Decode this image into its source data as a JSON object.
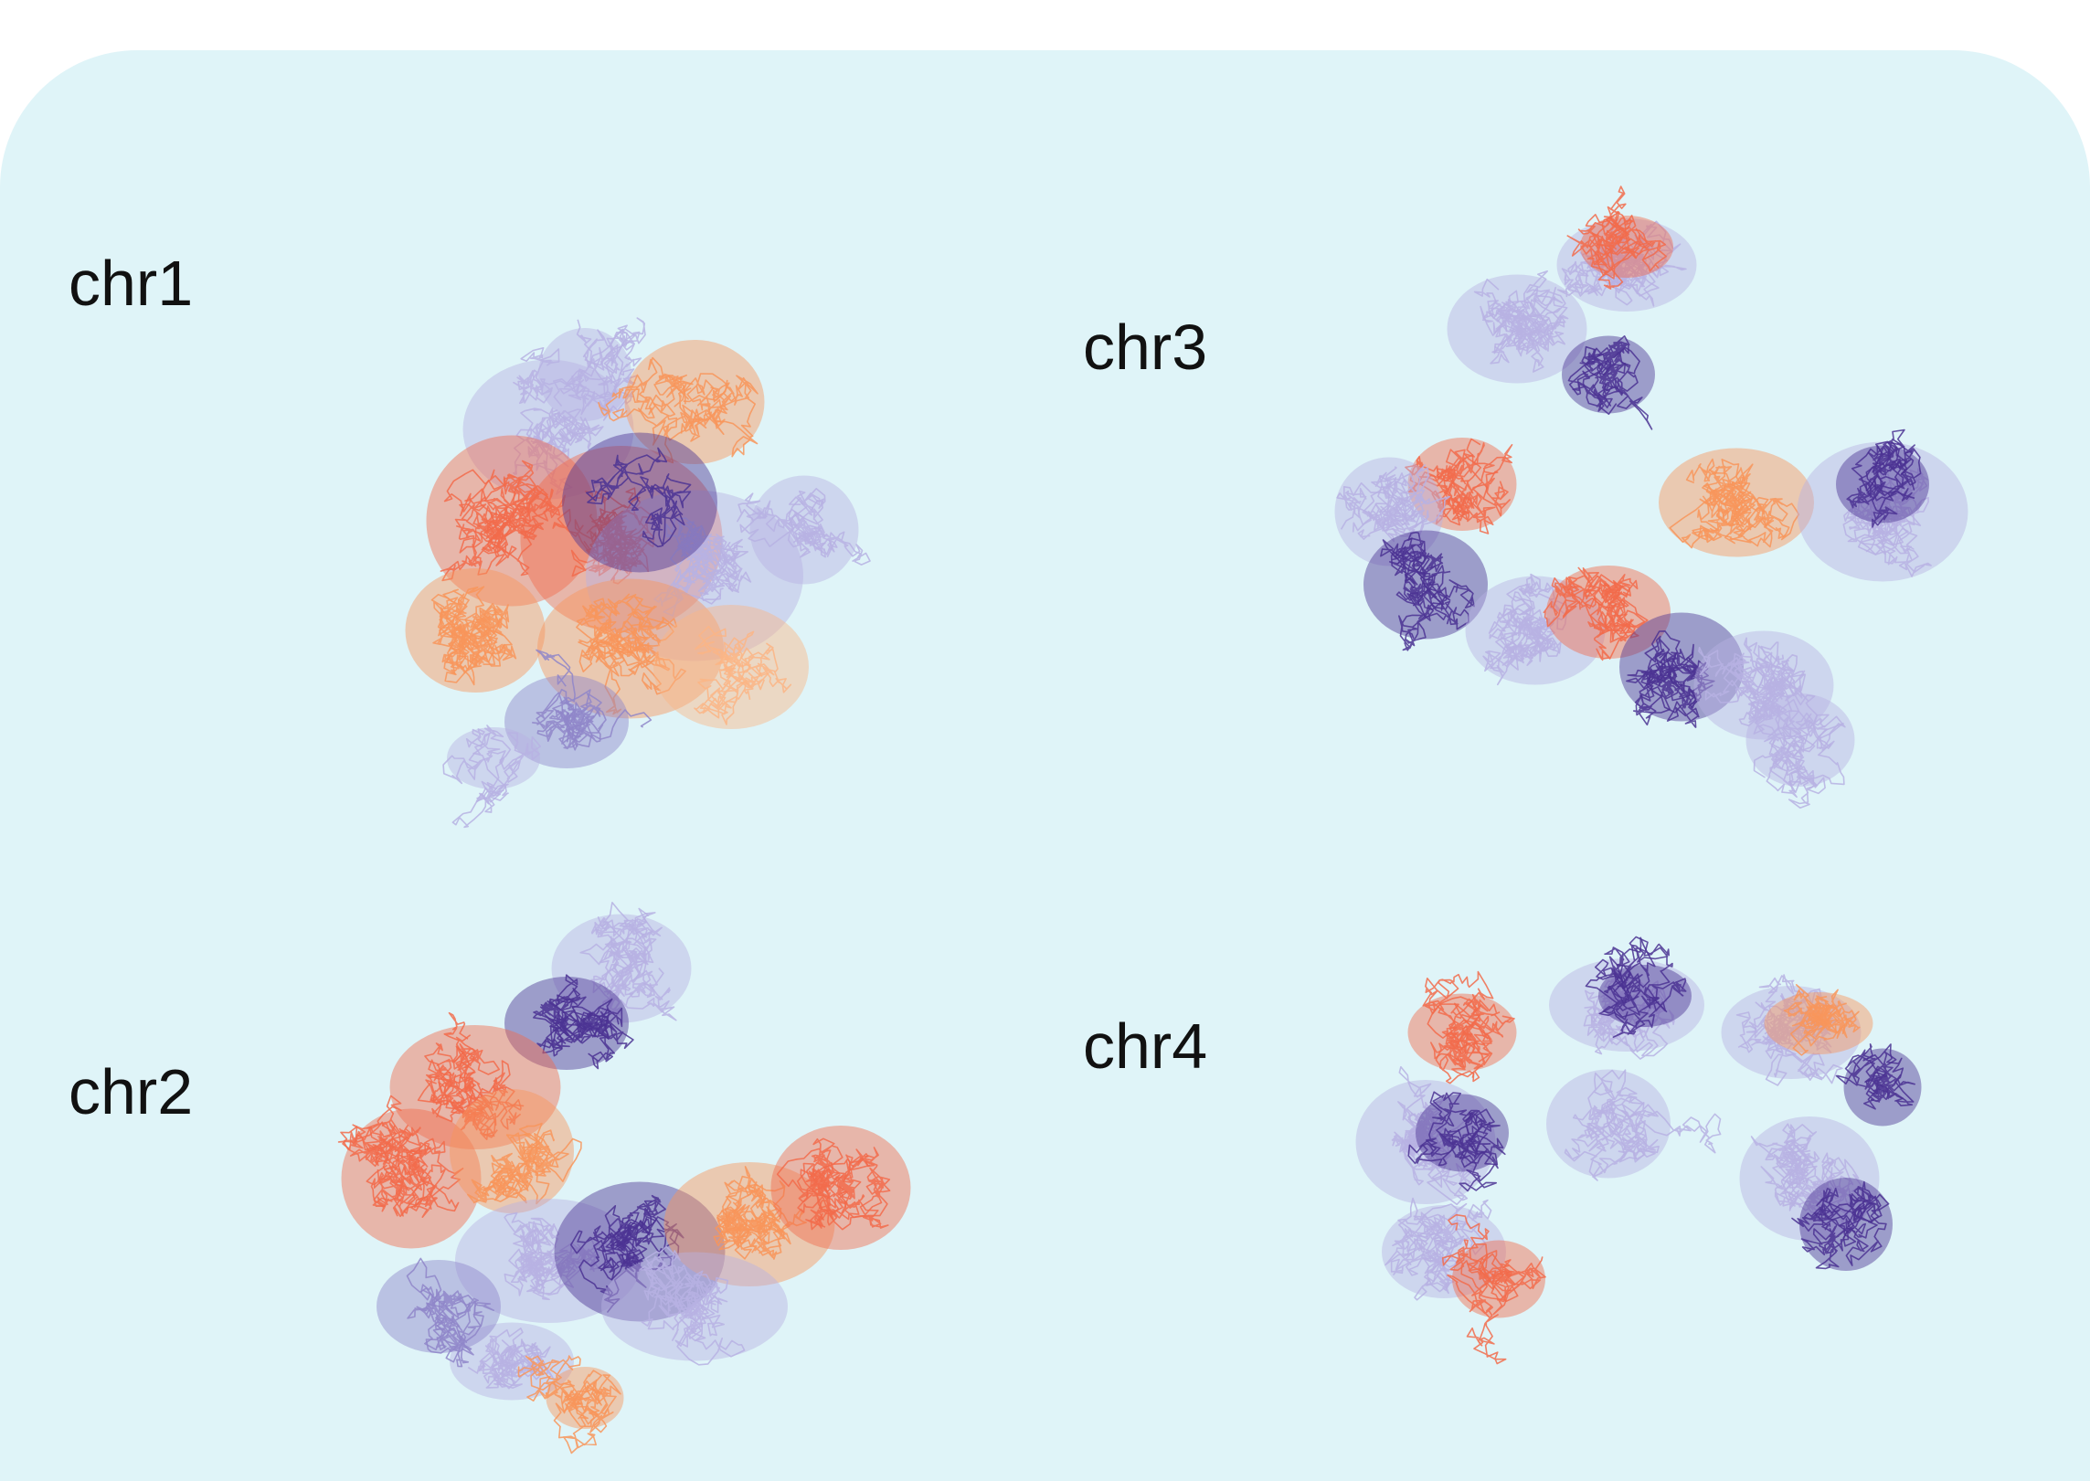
{
  "panel": {
    "background_color": "#dff4f8"
  },
  "palette": {
    "dark_purple": "#4b3293",
    "light_purple": "#b7b1e3",
    "mid_purple": "#8f86c9",
    "coral": "#f26b4b",
    "orange": "#f8955b",
    "peach": "#fbb585"
  },
  "chromosomes": [
    {
      "id": "chr1",
      "label": "chr1"
    },
    {
      "id": "chr2",
      "label": "chr2"
    },
    {
      "id": "chr3",
      "label": "chr3"
    },
    {
      "id": "chr4",
      "label": "chr4"
    }
  ]
}
